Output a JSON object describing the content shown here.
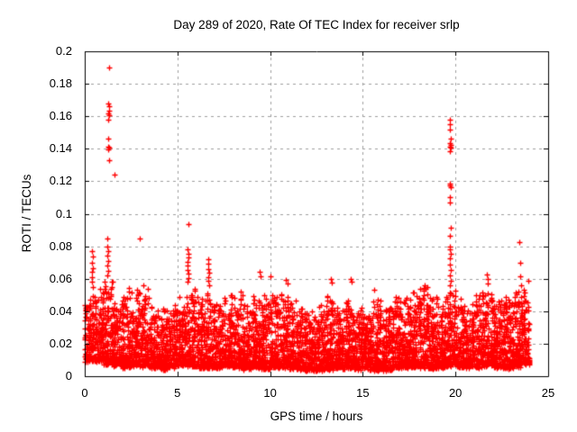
{
  "window": {
    "background": "#ffffff"
  },
  "chart_data": {
    "type": "scatter",
    "title": "Day 289 of 2020, Rate Of TEC Index for receiver srlp",
    "xlabel": "GPS time / hours",
    "ylabel": "ROTI / TECUs",
    "xlim": [
      0,
      25
    ],
    "ylim": [
      0,
      0.2
    ],
    "xtick_labels": [
      "0",
      "5",
      "10",
      "15",
      "20",
      "25"
    ],
    "ytick_labels": [
      "0",
      "0.02",
      "0.04",
      "0.06",
      "0.08",
      "0.1",
      "0.12",
      "0.14",
      "0.16",
      "0.18",
      "0.2"
    ],
    "grid": true,
    "legend": "none",
    "marker": "plus",
    "marker_size_px": 7,
    "colors": {
      "marker": "#ff0000",
      "grid": "#a0a0a0",
      "axis": "#000000",
      "text": "#000000",
      "background": "#ffffff"
    },
    "data_span_hours": [
      0,
      24
    ],
    "data_model": {
      "description": "Dense ROTI scatter band described per 0.5-hour bin by envelope top/bottom (TECUs), plus explicit outlier spike points read from the plot",
      "bin_width_hours": 0.5,
      "points_per_bin": 120,
      "seed": 289,
      "skew_power": 2.0,
      "column_fraction": 0.5,
      "band_top": [
        0.05,
        0.055,
        0.06,
        0.05,
        0.056,
        0.052,
        0.055,
        0.043,
        0.044,
        0.045,
        0.05,
        0.055,
        0.048,
        0.052,
        0.047,
        0.05,
        0.052,
        0.046,
        0.05,
        0.05,
        0.052,
        0.05,
        0.048,
        0.042,
        0.04,
        0.044,
        0.05,
        0.042,
        0.05,
        0.044,
        0.047,
        0.05,
        0.042,
        0.048,
        0.048,
        0.052,
        0.055,
        0.048,
        0.048,
        0.055,
        0.052,
        0.048,
        0.052,
        0.055,
        0.048,
        0.05,
        0.052,
        0.058
      ],
      "band_bottom": [
        0.01,
        0.009,
        0.008,
        0.007,
        0.006,
        0.007,
        0.006,
        0.006,
        0.005,
        0.006,
        0.007,
        0.007,
        0.006,
        0.006,
        0.006,
        0.007,
        0.006,
        0.005,
        0.006,
        0.005,
        0.006,
        0.006,
        0.005,
        0.004,
        0.004,
        0.004,
        0.005,
        0.005,
        0.006,
        0.005,
        0.005,
        0.004,
        0.004,
        0.005,
        0.006,
        0.006,
        0.006,
        0.005,
        0.006,
        0.007,
        0.006,
        0.006,
        0.006,
        0.007,
        0.006,
        0.005,
        0.006,
        0.008
      ],
      "outliers": [
        [
          0.4,
          0.077
        ],
        [
          0.42,
          0.0735
        ],
        [
          0.41,
          0.07
        ],
        [
          0.43,
          0.0665
        ],
        [
          0.39,
          0.064
        ],
        [
          0.41,
          0.061
        ],
        [
          0.4,
          0.058
        ],
        [
          0.42,
          0.055
        ],
        [
          1.22,
          0.0846
        ],
        [
          1.3,
          0.19
        ],
        [
          1.27,
          0.168
        ],
        [
          1.29,
          0.166
        ],
        [
          1.3,
          0.1635
        ],
        [
          1.27,
          0.162
        ],
        [
          1.29,
          0.1605
        ],
        [
          1.28,
          0.158
        ],
        [
          1.28,
          0.1465
        ],
        [
          1.26,
          0.1415
        ],
        [
          1.3,
          0.1405
        ],
        [
          1.28,
          0.1395
        ],
        [
          1.29,
          0.133
        ],
        [
          1.6,
          0.124
        ],
        [
          1.24,
          0.08
        ],
        [
          1.25,
          0.077
        ],
        [
          1.23,
          0.074
        ],
        [
          1.26,
          0.071
        ],
        [
          1.22,
          0.068
        ],
        [
          1.25,
          0.065
        ],
        [
          1.21,
          0.062
        ],
        [
          2.97,
          0.0846
        ],
        [
          5.58,
          0.0934
        ],
        [
          5.56,
          0.078
        ],
        [
          5.57,
          0.0755
        ],
        [
          5.58,
          0.073
        ],
        [
          5.55,
          0.0705
        ],
        [
          5.56,
          0.068
        ],
        [
          5.54,
          0.0655
        ],
        [
          5.58,
          0.063
        ],
        [
          5.57,
          0.0605
        ],
        [
          5.55,
          0.058
        ],
        [
          6.65,
          0.072
        ],
        [
          6.68,
          0.069
        ],
        [
          6.66,
          0.066
        ],
        [
          6.69,
          0.0635
        ],
        [
          6.67,
          0.061
        ],
        [
          6.64,
          0.0585
        ],
        [
          6.7,
          0.056
        ],
        [
          9.44,
          0.0643
        ],
        [
          9.47,
          0.0615
        ],
        [
          10.02,
          0.0615
        ],
        [
          10.85,
          0.0595
        ],
        [
          10.95,
          0.057
        ],
        [
          13.28,
          0.06
        ],
        [
          13.31,
          0.0575
        ],
        [
          14.35,
          0.06
        ],
        [
          14.42,
          0.058
        ],
        [
          15.61,
          0.053
        ],
        [
          18.35,
          0.056
        ],
        [
          18.4,
          0.054
        ],
        [
          19.7,
          0.158
        ],
        [
          19.71,
          0.155
        ],
        [
          19.7,
          0.152
        ],
        [
          19.75,
          0.146
        ],
        [
          19.72,
          0.1435
        ],
        [
          19.73,
          0.1425
        ],
        [
          19.71,
          0.1415
        ],
        [
          19.74,
          0.1405
        ],
        [
          19.72,
          0.1385
        ],
        [
          19.69,
          0.1185
        ],
        [
          19.71,
          0.1175
        ],
        [
          19.74,
          0.1165
        ],
        [
          19.72,
          0.11
        ],
        [
          19.7,
          0.107
        ],
        [
          19.73,
          0.0912
        ],
        [
          19.71,
          0.0863
        ],
        [
          19.69,
          0.08
        ],
        [
          19.72,
          0.078
        ],
        [
          19.75,
          0.0755
        ],
        [
          19.68,
          0.0725
        ],
        [
          19.71,
          0.0685
        ],
        [
          19.74,
          0.0655
        ],
        [
          19.7,
          0.062
        ],
        [
          19.73,
          0.059
        ],
        [
          19.68,
          0.056
        ],
        [
          21.69,
          0.0627
        ],
        [
          21.74,
          0.06
        ],
        [
          21.72,
          0.057
        ],
        [
          23.45,
          0.0824
        ],
        [
          23.47,
          0.0698
        ],
        [
          23.5,
          0.0615
        ]
      ]
    }
  }
}
